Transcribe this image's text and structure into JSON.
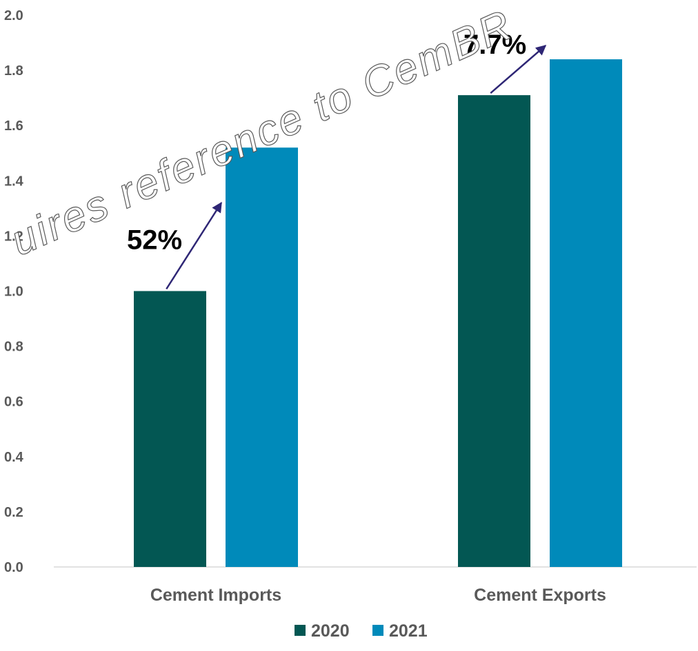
{
  "chart_data": {
    "type": "bar",
    "categories": [
      "Cement Imports",
      "Cement Exports"
    ],
    "series": [
      {
        "name": "2020",
        "values": [
          1.0,
          1.71
        ],
        "color": "#035753"
      },
      {
        "name": "2021",
        "values": [
          1.52,
          1.84
        ],
        "color": "#008ABA"
      }
    ],
    "ylim": [
      0,
      2.0
    ],
    "yticks": [
      "0.0",
      "0.2",
      "0.4",
      "0.6",
      "0.8",
      "1.0",
      "1.2",
      "1.4",
      "1.6",
      "1.8",
      "2.0"
    ],
    "grid": false,
    "legend": "bottom",
    "annotations": [
      {
        "text": "52%",
        "category": "Cement Imports",
        "arrow_color": "#2E2675"
      },
      {
        "text": "7.7%",
        "category": "Cement Exports",
        "arrow_color": "#2E2675"
      }
    ],
    "watermark": "uires reference to CemBR"
  }
}
